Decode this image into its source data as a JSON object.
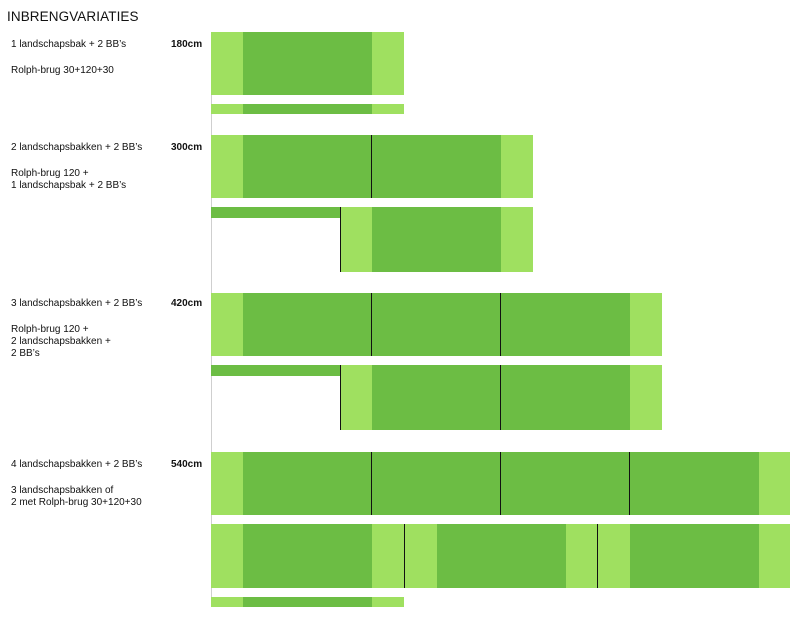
{
  "title": "INBRENGVARIATIES",
  "colors": {
    "light_green": "#9fe060",
    "dark_green": "#6cbd44",
    "joint": "#111111"
  },
  "variations": [
    {
      "label": "1 landschapsbak + 2 BB’s",
      "width_label": "180cm",
      "alt_label": "Rolph-brug 30+120+30"
    },
    {
      "label": "2 landschapsbakken +  2 BB’s",
      "width_label": "300cm",
      "alt_label": "Rolph-brug 120 +\n1 landschapsbak + 2 BB’s"
    },
    {
      "label": "3 landschapsbakken + 2 BB’s",
      "width_label": "420cm",
      "alt_label": "Rolph-brug 120 +\n2 landschapsbakken +\n2 BB’s"
    },
    {
      "label": "4 landschapsbakken + 2 BB’s",
      "width_label": "540cm",
      "alt_label": "3 landschapsbakken of\n2 met Rolph-brug 30+120+30"
    }
  ]
}
